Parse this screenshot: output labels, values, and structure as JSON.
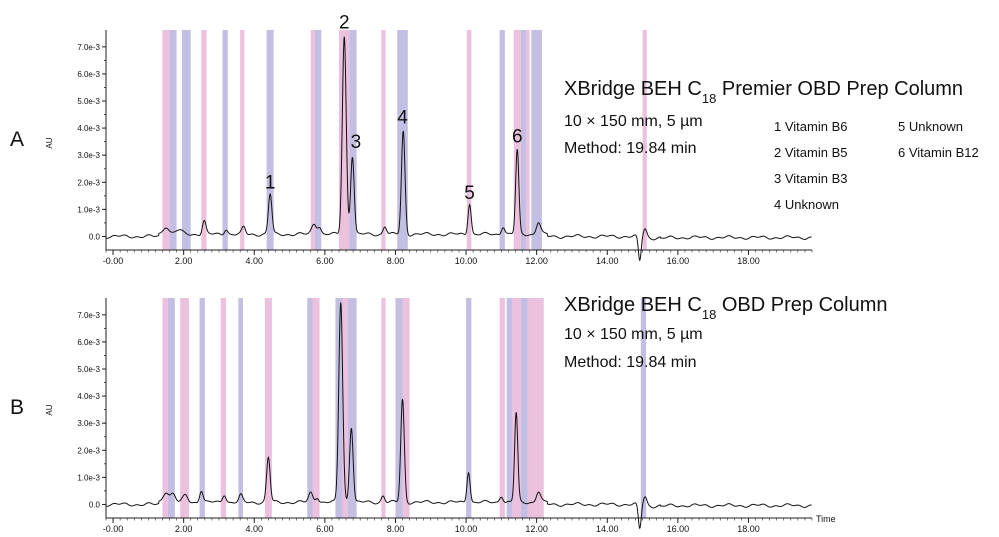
{
  "chart_data": [
    {
      "type": "line",
      "panel_label": "A",
      "title_parts": [
        "XBridge BEH C",
        "18",
        " Premier OBD Prep Column"
      ],
      "subtitle_lines": [
        "10 × 150 mm, 5 µm",
        "Method: 19.84 min"
      ],
      "ylabel": "AU",
      "xlabel": "",
      "xlim": [
        -0.2,
        19.8
      ],
      "ylim": [
        -0.0005,
        0.0074
      ],
      "x_ticks": [
        0,
        2,
        4,
        6,
        8,
        10,
        12,
        14,
        16,
        18
      ],
      "x_tick_labels": [
        "-0.00",
        "2.00",
        "4.00",
        "6.00",
        "8.00",
        "10.00",
        "12.00",
        "14.00",
        "16.00",
        "18.00"
      ],
      "y_ticks": [
        0,
        0.001,
        0.002,
        0.003,
        0.004,
        0.005,
        0.006,
        0.007
      ],
      "y_tick_labels": [
        "0.0",
        "1.0e-3",
        "2.0e-3",
        "3.0e-3",
        "4.0e-3",
        "5.0e-3",
        "6.0e-3",
        "7.0e-3"
      ],
      "bands": [
        {
          "x0": 1.4,
          "x1": 1.6,
          "color": "#e8b6d8"
        },
        {
          "x0": 1.6,
          "x1": 1.8,
          "color": "#b9b4de"
        },
        {
          "x0": 1.95,
          "x1": 2.2,
          "color": "#b9b4de"
        },
        {
          "x0": 2.5,
          "x1": 2.65,
          "color": "#e8b6d8"
        },
        {
          "x0": 3.1,
          "x1": 3.25,
          "color": "#b9b4de"
        },
        {
          "x0": 3.6,
          "x1": 3.72,
          "color": "#e8b6d8"
        },
        {
          "x0": 4.35,
          "x1": 4.55,
          "color": "#b9b4de"
        },
        {
          "x0": 5.6,
          "x1": 5.72,
          "color": "#e8b6d8"
        },
        {
          "x0": 5.72,
          "x1": 5.9,
          "color": "#b9b4de"
        },
        {
          "x0": 6.4,
          "x1": 6.55,
          "color": "#e8b6d8"
        },
        {
          "x0": 6.55,
          "x1": 6.7,
          "color": "#e8b6d8"
        },
        {
          "x0": 6.7,
          "x1": 6.9,
          "color": "#b9b4de"
        },
        {
          "x0": 7.6,
          "x1": 7.72,
          "color": "#e8b6d8"
        },
        {
          "x0": 8.05,
          "x1": 8.35,
          "color": "#b9b4de"
        },
        {
          "x0": 10.02,
          "x1": 10.15,
          "color": "#e8b6d8"
        },
        {
          "x0": 10.95,
          "x1": 11.1,
          "color": "#b9b4de"
        },
        {
          "x0": 11.35,
          "x1": 11.55,
          "color": "#e8b6d8"
        },
        {
          "x0": 11.55,
          "x1": 11.7,
          "color": "#b9b4de"
        },
        {
          "x0": 11.7,
          "x1": 11.8,
          "color": "#e8b6d8"
        },
        {
          "x0": 11.85,
          "x1": 12.15,
          "color": "#b9b4de"
        },
        {
          "x0": 15.0,
          "x1": 15.12,
          "color": "#e8b6d8"
        }
      ],
      "baseline": 0.0,
      "peaks": [
        {
          "x": 1.5,
          "h": 0.0003,
          "w": 0.08
        },
        {
          "x": 1.85,
          "h": 0.00015,
          "w": 0.1
        },
        {
          "x": 2.58,
          "h": 0.0005,
          "w": 0.05
        },
        {
          "x": 3.2,
          "h": 0.0002,
          "w": 0.05
        },
        {
          "x": 3.7,
          "h": 0.00025,
          "w": 0.05
        },
        {
          "x": 4.45,
          "h": 0.00148,
          "w": 0.05
        },
        {
          "x": 5.7,
          "h": 0.0004,
          "w": 0.07
        },
        {
          "x": 5.85,
          "h": 0.00025,
          "w": 0.05
        },
        {
          "x": 6.55,
          "h": 0.0073,
          "w": 0.055
        },
        {
          "x": 6.78,
          "h": 0.0029,
          "w": 0.05
        },
        {
          "x": 7.7,
          "h": 0.0003,
          "w": 0.05
        },
        {
          "x": 8.22,
          "h": 0.0038,
          "w": 0.05
        },
        {
          "x": 10.1,
          "h": 0.00115,
          "w": 0.045
        },
        {
          "x": 11.05,
          "h": 0.0003,
          "w": 0.05
        },
        {
          "x": 11.45,
          "h": 0.0031,
          "w": 0.045
        },
        {
          "x": 12.05,
          "h": 0.00045,
          "w": 0.06
        }
      ],
      "disturbance_x": 14.92,
      "peak_labels": [
        {
          "label": "1",
          "x": 4.45,
          "y": 0.0017
        },
        {
          "label": "2",
          "x": 6.55,
          "y": 0.0076
        },
        {
          "label": "3",
          "x": 6.88,
          "y": 0.0032
        },
        {
          "label": "4",
          "x": 8.2,
          "y": 0.0041
        },
        {
          "label": "5",
          "x": 10.1,
          "y": 0.0013
        },
        {
          "label": "6",
          "x": 11.45,
          "y": 0.0034
        }
      ],
      "legend": [
        "1 Vitamin B6",
        "2 Vitamin B5",
        "3 Vitamin B3",
        "4 Unknown",
        "5 Unknown",
        "6 Vitamin B12"
      ]
    },
    {
      "type": "line",
      "panel_label": "B",
      "title_parts": [
        "XBridge BEH C",
        "18",
        " OBD Prep Column"
      ],
      "subtitle_lines": [
        "10 × 150 mm, 5 µm",
        "Method: 19.84 min"
      ],
      "ylabel": "AU",
      "xlabel": "Time",
      "xlim": [
        -0.2,
        19.8
      ],
      "ylim": [
        -0.0005,
        0.0074
      ],
      "x_ticks": [
        0,
        2,
        4,
        6,
        8,
        10,
        12,
        14,
        16,
        18
      ],
      "x_tick_labels": [
        "-0.00",
        "2.00",
        "4.00",
        "6.00",
        "8.00",
        "10.00",
        "12.00",
        "14.00",
        "16.00",
        "18.00"
      ],
      "y_ticks": [
        0,
        0.001,
        0.002,
        0.003,
        0.004,
        0.005,
        0.006,
        0.007
      ],
      "y_tick_labels": [
        "0.0",
        "1.0e-3",
        "2.0e-3",
        "3.0e-3",
        "4.0e-3",
        "5.0e-3",
        "6.0e-3",
        "7.0e-3"
      ],
      "bands": [
        {
          "x0": 1.4,
          "x1": 1.55,
          "color": "#e8b6d8"
        },
        {
          "x0": 1.55,
          "x1": 1.75,
          "color": "#b9b4de"
        },
        {
          "x0": 1.9,
          "x1": 2.15,
          "color": "#e8b6d8"
        },
        {
          "x0": 2.45,
          "x1": 2.6,
          "color": "#b9b4de"
        },
        {
          "x0": 3.05,
          "x1": 3.2,
          "color": "#e8b6d8"
        },
        {
          "x0": 3.55,
          "x1": 3.68,
          "color": "#b9b4de"
        },
        {
          "x0": 4.3,
          "x1": 4.5,
          "color": "#e8b6d8"
        },
        {
          "x0": 5.5,
          "x1": 5.65,
          "color": "#b9b4de"
        },
        {
          "x0": 5.65,
          "x1": 5.85,
          "color": "#e8b6d8"
        },
        {
          "x0": 6.3,
          "x1": 6.5,
          "color": "#b9b4de"
        },
        {
          "x0": 6.5,
          "x1": 6.65,
          "color": "#e8b6d8"
        },
        {
          "x0": 6.65,
          "x1": 6.9,
          "color": "#b9b4de"
        },
        {
          "x0": 7.6,
          "x1": 7.72,
          "color": "#e8b6d8"
        },
        {
          "x0": 8.0,
          "x1": 8.2,
          "color": "#b9b4de"
        },
        {
          "x0": 8.2,
          "x1": 8.4,
          "color": "#e8b6d8"
        },
        {
          "x0": 10.0,
          "x1": 10.15,
          "color": "#b9b4de"
        },
        {
          "x0": 10.95,
          "x1": 11.1,
          "color": "#e8b6d8"
        },
        {
          "x0": 11.15,
          "x1": 11.3,
          "color": "#b9b4de"
        },
        {
          "x0": 11.3,
          "x1": 11.55,
          "color": "#e8b6d8"
        },
        {
          "x0": 11.55,
          "x1": 11.75,
          "color": "#b9b4de"
        },
        {
          "x0": 11.75,
          "x1": 11.95,
          "color": "#e8b6d8"
        },
        {
          "x0": 11.95,
          "x1": 12.2,
          "color": "#e8b6d8"
        },
        {
          "x0": 14.95,
          "x1": 15.1,
          "color": "#b9b4de"
        }
      ],
      "baseline": 0.0,
      "peaks": [
        {
          "x": 1.5,
          "h": 0.0004,
          "w": 0.08
        },
        {
          "x": 1.7,
          "h": 0.0003,
          "w": 0.07
        },
        {
          "x": 2.05,
          "h": 0.00025,
          "w": 0.07
        },
        {
          "x": 2.5,
          "h": 0.00045,
          "w": 0.05
        },
        {
          "x": 3.15,
          "h": 0.0003,
          "w": 0.05
        },
        {
          "x": 3.62,
          "h": 0.00025,
          "w": 0.05
        },
        {
          "x": 4.4,
          "h": 0.00165,
          "w": 0.05
        },
        {
          "x": 5.6,
          "h": 0.00035,
          "w": 0.06
        },
        {
          "x": 5.78,
          "h": 0.0002,
          "w": 0.05
        },
        {
          "x": 6.45,
          "h": 0.0074,
          "w": 0.055
        },
        {
          "x": 6.75,
          "h": 0.0028,
          "w": 0.05
        },
        {
          "x": 7.65,
          "h": 0.00025,
          "w": 0.05
        },
        {
          "x": 8.2,
          "h": 0.0038,
          "w": 0.05
        },
        {
          "x": 10.07,
          "h": 0.00115,
          "w": 0.045
        },
        {
          "x": 11.0,
          "h": 0.00025,
          "w": 0.05
        },
        {
          "x": 11.42,
          "h": 0.0033,
          "w": 0.045
        },
        {
          "x": 12.05,
          "h": 0.0004,
          "w": 0.06
        }
      ],
      "disturbance_x": 14.92,
      "peak_labels": [],
      "legend": []
    }
  ]
}
